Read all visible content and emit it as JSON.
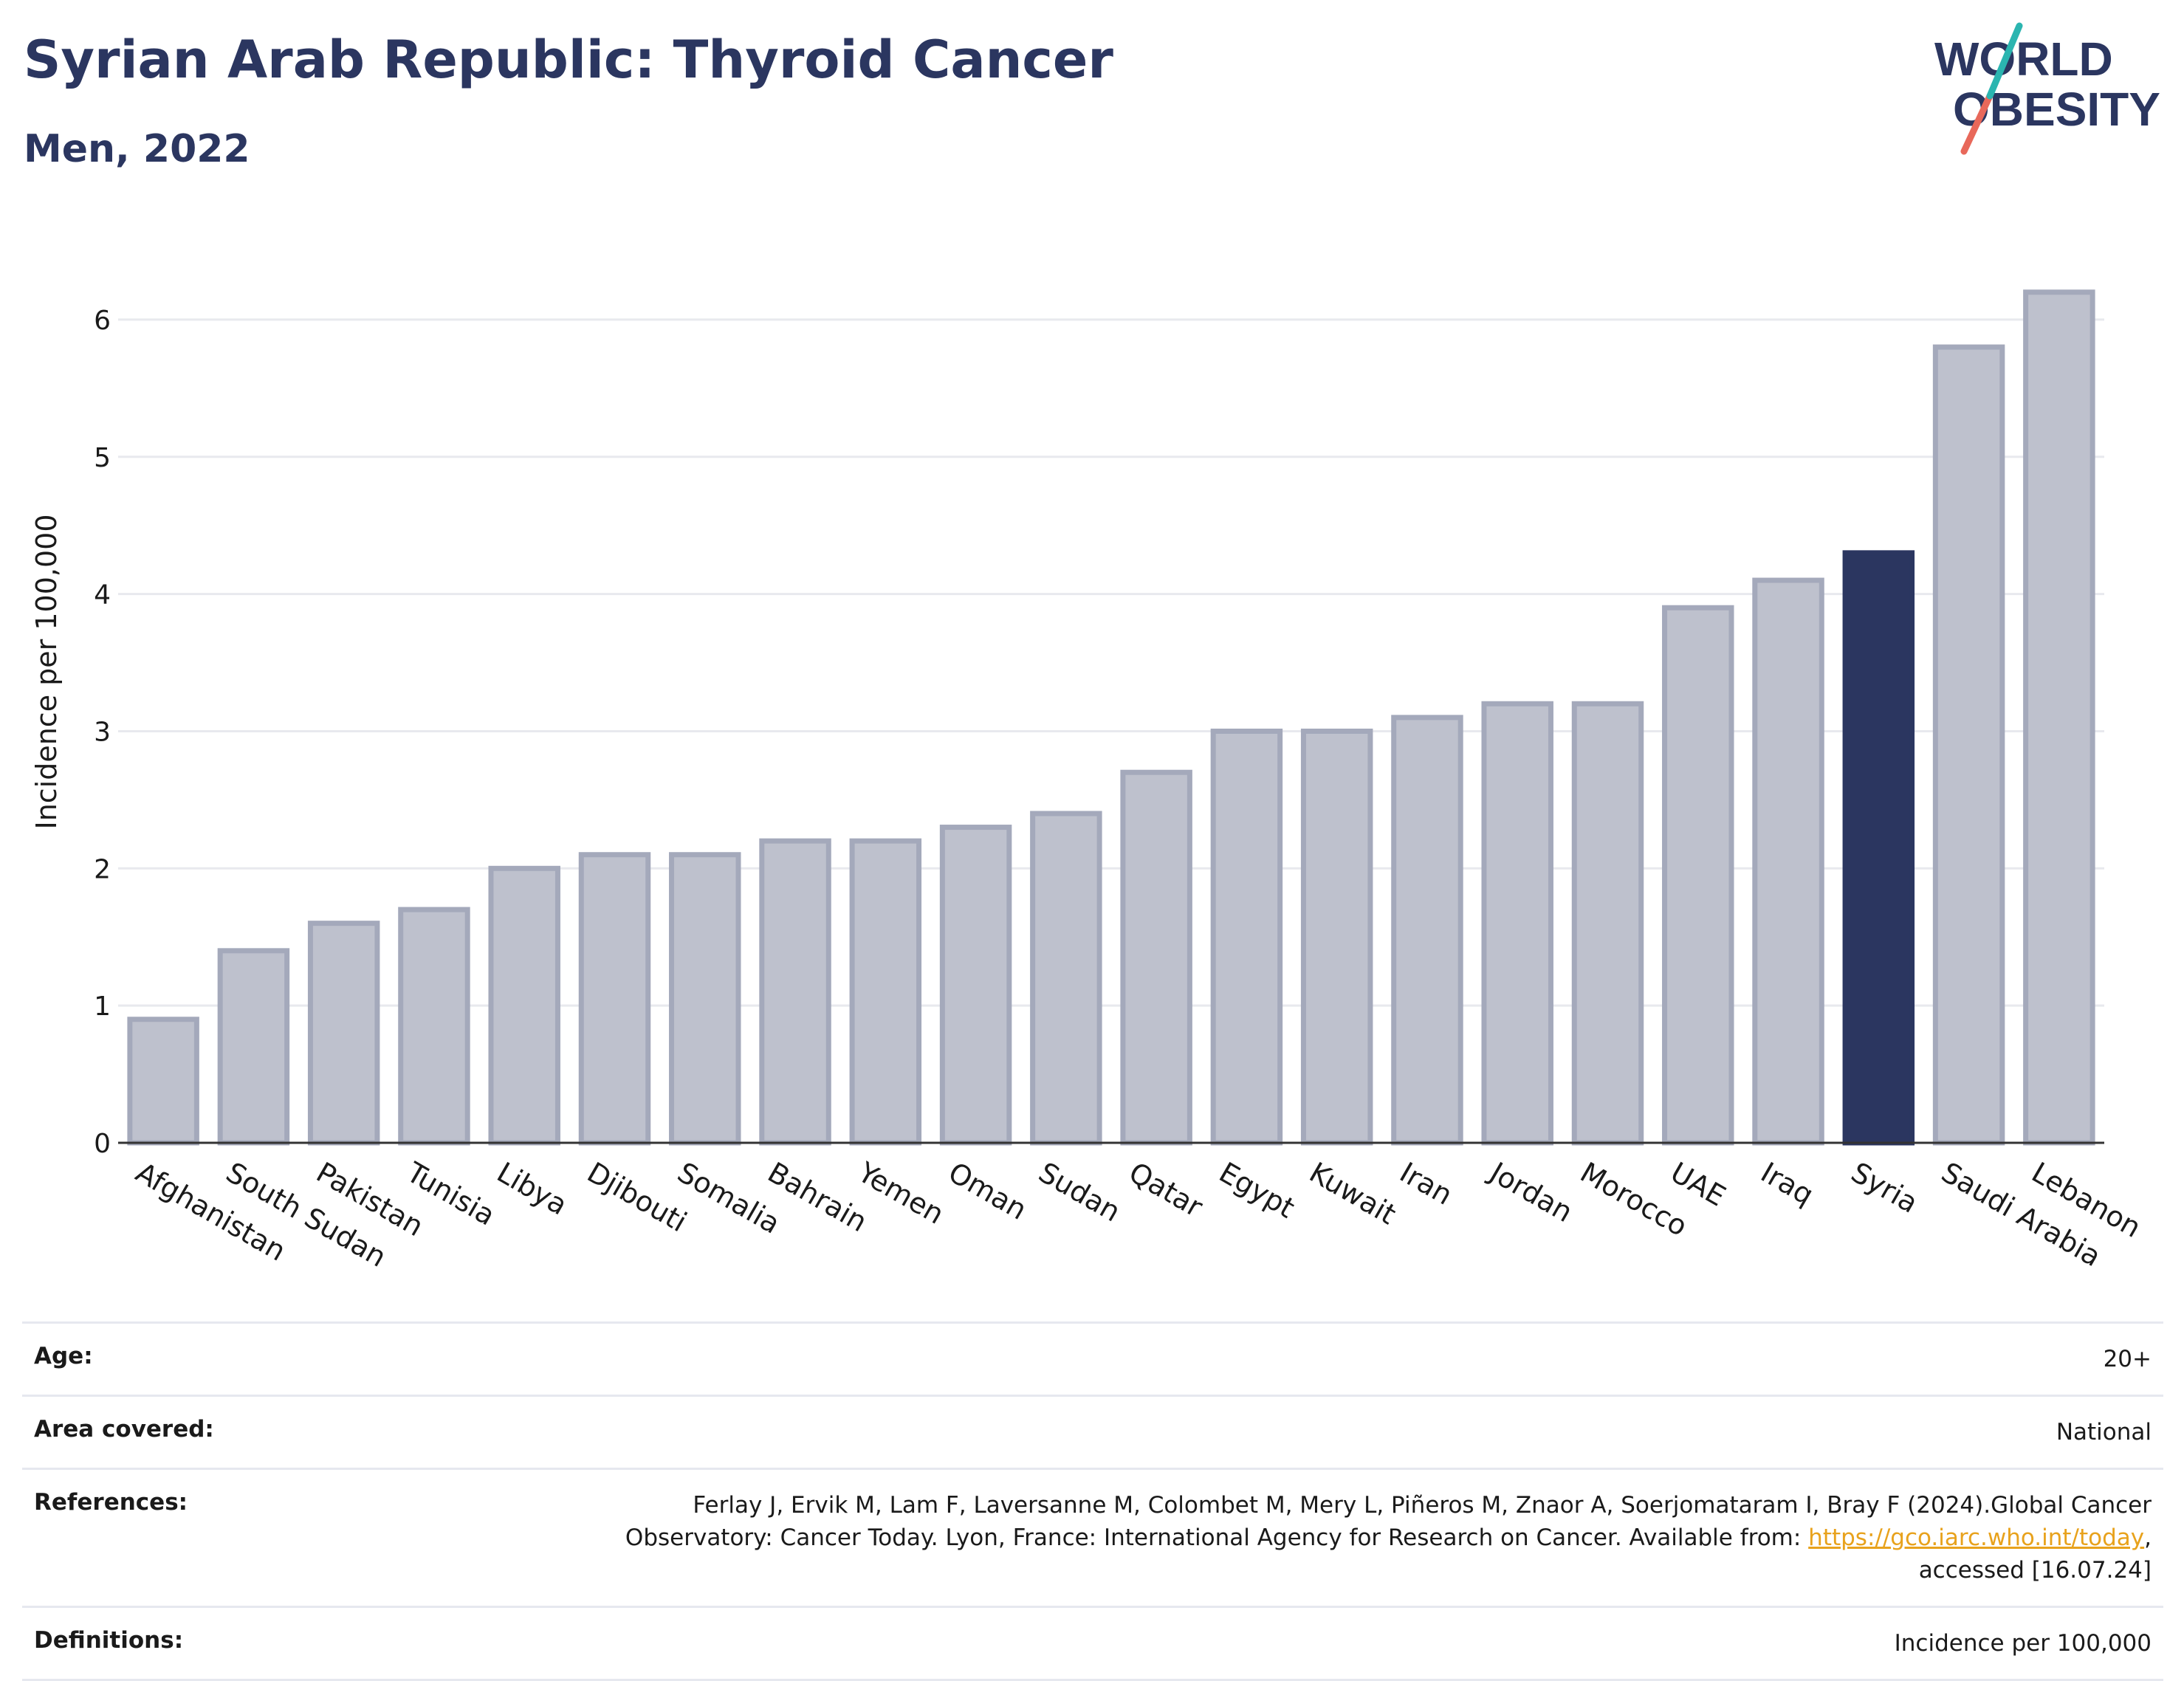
{
  "header": {
    "title": "Syrian Arab Republic: Thyroid Cancer",
    "subtitle": "Men, 2022"
  },
  "logo": {
    "line1": "WORLD",
    "line2": "OBESITY",
    "colors": {
      "text": "#2b3660",
      "slash_teal": "#2bb5b0",
      "slash_red": "#e8685a"
    }
  },
  "colors": {
    "bar_default_fill": "#bec1cd",
    "bar_default_stroke": "#a4a9bb",
    "bar_highlight": "#2b3660",
    "grid": "#e8e9ee",
    "axis": "#333333",
    "link": "#e8a21c"
  },
  "chart_data": {
    "type": "bar",
    "title": "Syrian Arab Republic: Thyroid Cancer",
    "subtitle": "Men, 2022",
    "xlabel": "",
    "ylabel": "Incidence per 100,000",
    "ylim": [
      0,
      6.5
    ],
    "yticks": [
      0,
      1,
      2,
      3,
      4,
      5,
      6
    ],
    "grid": true,
    "highlight": "Syria",
    "categories": [
      "Afghanistan",
      "South Sudan",
      "Pakistan",
      "Tunisia",
      "Libya",
      "Djibouti",
      "Somalia",
      "Bahrain",
      "Yemen",
      "Oman",
      "Sudan",
      "Qatar",
      "Egypt",
      "Kuwait",
      "Iran",
      "Jordan",
      "Morocco",
      "UAE",
      "Iraq",
      "Syria",
      "Saudi Arabia",
      "Lebanon"
    ],
    "values": [
      0.9,
      1.4,
      1.6,
      1.7,
      2.0,
      2.1,
      2.1,
      2.2,
      2.2,
      2.3,
      2.4,
      2.7,
      3.0,
      3.0,
      3.1,
      3.2,
      3.2,
      3.9,
      4.1,
      4.3,
      5.8,
      6.2
    ]
  },
  "meta": {
    "age_label": "Age:",
    "age_value": "20+",
    "area_label": "Area covered:",
    "area_value": "National",
    "references_label": "References:",
    "references_line1": "Ferlay J, Ervik M, Lam F, Laversanne M, Colombet M, Mery L, Piñeros M, Znaor A, Soerjomataram I, Bray F (2024).Global Cancer",
    "references_line2_prefix": "Observatory: Cancer Today. Lyon, France: International Agency for Research on Cancer. Available from: ",
    "references_link": "https://gco.iarc.who.int/today",
    "references_line2_suffix": ",",
    "references_line3": "accessed [16.07.24]",
    "definitions_label": "Definitions:",
    "definitions_value": "Incidence per 100,000"
  }
}
